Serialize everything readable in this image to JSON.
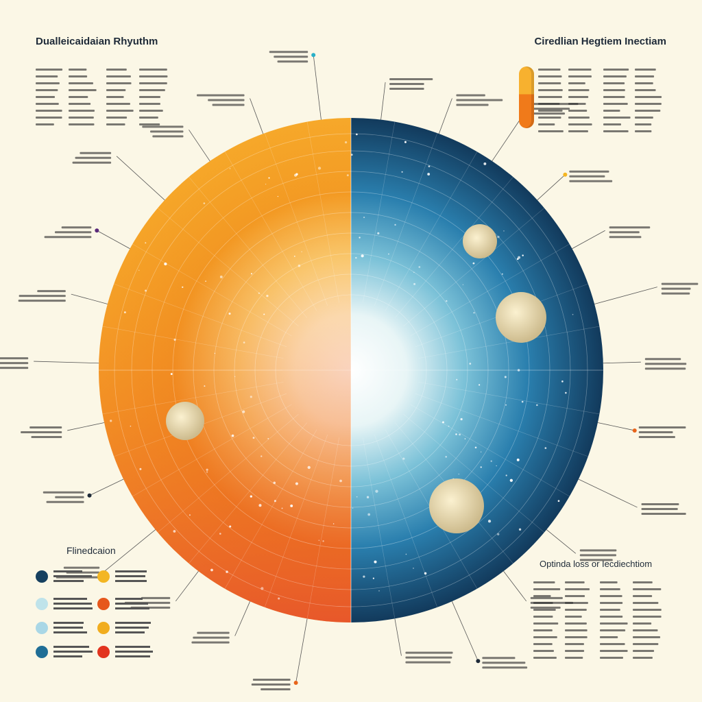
{
  "titles": {
    "left": "Dualleicaidaian Rhyuthm",
    "right": "Ciredlian Hegtiem Inectiam",
    "legend_left": "Flinedcaion",
    "legend_right": "Optinda loss or Iecdiechtiom"
  },
  "colors": {
    "background": "#fbf7e6",
    "day_outer": "#f49a1b",
    "day_inner": "#fff6d8",
    "night_outer": "#123a5c",
    "night_mid": "#2a86b6",
    "accent_orange": "#e8641a",
    "accent_red": "#e23a2a",
    "accent_yellow": "#f5b521",
    "accent_teal": "#2ab0c8"
  },
  "icons": [
    "capsule-icon",
    "moon-icon",
    "sun-gradient-icon"
  ],
  "legend_left": [
    {
      "color": "#16405f"
    },
    {
      "color": "#f3b623"
    },
    {
      "color": "#bfe3ea"
    },
    {
      "color": "#e6571c"
    },
    {
      "color": "#a9d7e6"
    },
    {
      "color": "#f1ad1e"
    },
    {
      "color": "#1f6e96"
    },
    {
      "color": "#e2341f"
    }
  ]
}
